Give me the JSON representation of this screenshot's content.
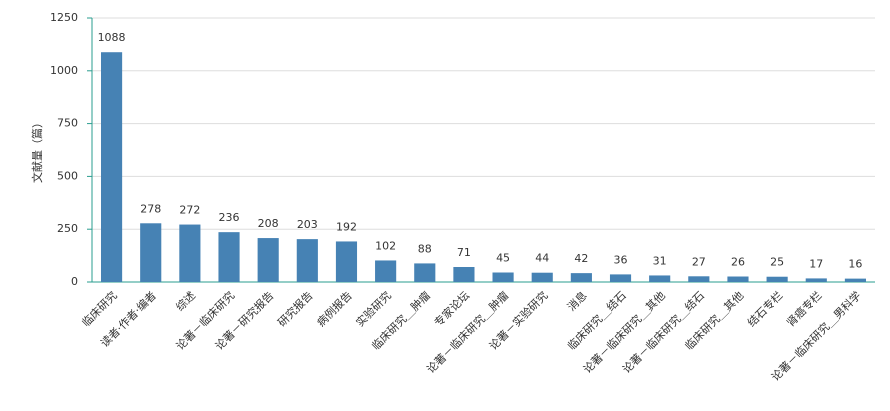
{
  "chart_data": {
    "type": "bar",
    "y_label": "文献量（篇）",
    "categories": [
      "临床研究",
      "读者·作者·编者",
      "综述",
      "论著－临床研究",
      "论著－研究报告",
      "研究报告",
      "病例报告",
      "实验研究",
      "临床研究＿肿瘤",
      "专家论坛",
      "论著－临床研究＿肿瘤",
      "论著－实验研究",
      "消息",
      "临床研究＿结石",
      "论著－临床研究＿其他",
      "论著－临床研究＿结石",
      "临床研究＿其他",
      "结石专栏",
      "肾癌专栏",
      "论著－临床研究＿男科学"
    ],
    "values": [
      1088,
      278,
      272,
      236,
      208,
      203,
      192,
      102,
      88,
      71,
      45,
      44,
      42,
      36,
      31,
      27,
      26,
      25,
      17,
      16
    ],
    "color": "#4682b4",
    "ylim": [
      0,
      1250
    ],
    "yticks": [
      0,
      250,
      500,
      750,
      1000,
      1250
    ],
    "grid": true
  }
}
